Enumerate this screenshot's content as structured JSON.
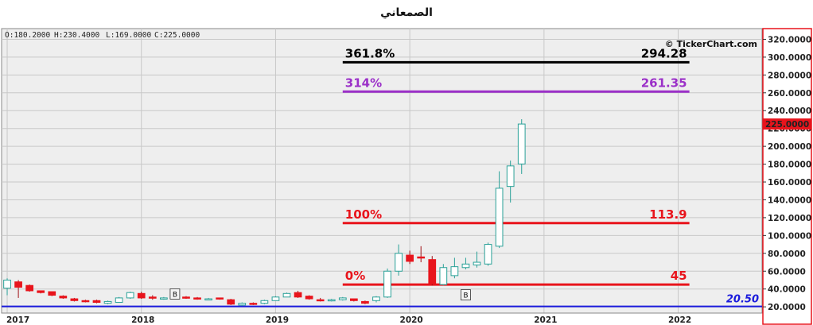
{
  "title": "الصمعاني",
  "ohlc": {
    "open": "O:180.2000",
    "high": "H:230.4000",
    "low": "L:169.0000",
    "close": "C:225.0000"
  },
  "copyright": "© TickerChart.com",
  "colors": {
    "up": "#2aa198",
    "down": "#e8141c",
    "grid": "#c8c8c8",
    "fib_black": "#000000",
    "fib_purple": "#9b30c8",
    "fib_red": "#e8141c",
    "support": "#1a1adc",
    "axis_border": "#e8141c"
  },
  "chart_data": {
    "type": "candlestick",
    "title": "الصمعاني",
    "ylim": [
      13,
      332
    ],
    "y_ticks": [
      20,
      40,
      60,
      80,
      100,
      120,
      140,
      160,
      180,
      200,
      220,
      240,
      260,
      280,
      300,
      320
    ],
    "y_tick_labels": [
      "20.0000",
      "40.0000",
      "60.0000",
      "80.0000",
      "100.0000",
      "120.0000",
      "140.0000",
      "160.0000",
      "180.0000",
      "200.0000",
      "220.0000",
      "240.0000",
      "260.0000",
      "280.0000",
      "300.0000",
      "320.0000"
    ],
    "x_ticks": [
      {
        "label": "2017",
        "index": 0
      },
      {
        "label": "2018",
        "index": 12
      },
      {
        "label": "2019",
        "index": 24
      },
      {
        "label": "2020",
        "index": 36
      },
      {
        "label": "2021",
        "index": 48
      },
      {
        "label": "2022",
        "index": 60
      }
    ],
    "x_range": [
      -0.5,
      67.5
    ],
    "last_price": {
      "value": 225.0,
      "label": "225.0000"
    },
    "support": {
      "value": 20.5,
      "label": "20.50"
    },
    "fib_levels": [
      {
        "pct": "361.8%",
        "value": 294.28,
        "value_label": "294.28",
        "color": "#000000"
      },
      {
        "pct": "314%",
        "value": 261.35,
        "value_label": "261.35",
        "color": "#9b30c8"
      },
      {
        "pct": "100%",
        "value": 113.9,
        "value_label": "113.9",
        "color": "#e8141c"
      },
      {
        "pct": "0%",
        "value": 45,
        "value_label": "45",
        "color": "#e8141c"
      }
    ],
    "fib_x_range": [
      30,
      61
    ],
    "markers": [
      {
        "label": "B",
        "index": 15,
        "value": 34
      },
      {
        "label": "B",
        "index": 41,
        "value": 33
      }
    ],
    "candles": [
      {
        "o": 41,
        "h": 52,
        "l": 33,
        "c": 50
      },
      {
        "o": 48,
        "h": 50,
        "l": 30,
        "c": 42
      },
      {
        "o": 44,
        "h": 45,
        "l": 37,
        "c": 38
      },
      {
        "o": 38,
        "h": 38,
        "l": 35,
        "c": 36
      },
      {
        "o": 37,
        "h": 37,
        "l": 32,
        "c": 33
      },
      {
        "o": 32,
        "h": 33,
        "l": 29,
        "c": 30
      },
      {
        "o": 29,
        "h": 30,
        "l": 26,
        "c": 27
      },
      {
        "o": 27,
        "h": 28,
        "l": 25,
        "c": 26
      },
      {
        "o": 27,
        "h": 28,
        "l": 24,
        "c": 25
      },
      {
        "o": 24,
        "h": 27,
        "l": 23,
        "c": 26
      },
      {
        "o": 25,
        "h": 31,
        "l": 25,
        "c": 30
      },
      {
        "o": 30,
        "h": 37,
        "l": 29,
        "c": 36
      },
      {
        "o": 35,
        "h": 37,
        "l": 29,
        "c": 30
      },
      {
        "o": 31,
        "h": 33,
        "l": 28,
        "c": 30
      },
      {
        "o": 29,
        "h": 31,
        "l": 28,
        "c": 30
      },
      {
        "o": 30,
        "h": 32,
        "l": 29,
        "c": 31
      },
      {
        "o": 31,
        "h": 32,
        "l": 29,
        "c": 30
      },
      {
        "o": 30,
        "h": 31,
        "l": 28,
        "c": 29
      },
      {
        "o": 29,
        "h": 30,
        "l": 28,
        "c": 29
      },
      {
        "o": 30,
        "h": 30,
        "l": 28,
        "c": 29
      },
      {
        "o": 28,
        "h": 29,
        "l": 22,
        "c": 23
      },
      {
        "o": 22,
        "h": 25,
        "l": 21,
        "c": 24
      },
      {
        "o": 24,
        "h": 25,
        "l": 22,
        "c": 23
      },
      {
        "o": 24,
        "h": 28,
        "l": 23,
        "c": 27
      },
      {
        "o": 27,
        "h": 32,
        "l": 27,
        "c": 31
      },
      {
        "o": 31,
        "h": 36,
        "l": 31,
        "c": 35
      },
      {
        "o": 36,
        "h": 38,
        "l": 30,
        "c": 31
      },
      {
        "o": 32,
        "h": 33,
        "l": 28,
        "c": 29
      },
      {
        "o": 28,
        "h": 30,
        "l": 26,
        "c": 27
      },
      {
        "o": 27,
        "h": 29,
        "l": 26,
        "c": 28
      },
      {
        "o": 28,
        "h": 31,
        "l": 27,
        "c": 30
      },
      {
        "o": 29,
        "h": 29,
        "l": 26,
        "c": 27
      },
      {
        "o": 26,
        "h": 27,
        "l": 23,
        "c": 24
      },
      {
        "o": 27,
        "h": 32,
        "l": 25,
        "c": 31
      },
      {
        "o": 31,
        "h": 63,
        "l": 30,
        "c": 60
      },
      {
        "o": 60,
        "h": 90,
        "l": 55,
        "c": 80
      },
      {
        "o": 78,
        "h": 83,
        "l": 68,
        "c": 71
      },
      {
        "o": 76,
        "h": 88,
        "l": 70,
        "c": 75
      },
      {
        "o": 73,
        "h": 77,
        "l": 44,
        "c": 46
      },
      {
        "o": 45,
        "h": 68,
        "l": 44,
        "c": 64
      },
      {
        "o": 55,
        "h": 75,
        "l": 52,
        "c": 65
      },
      {
        "o": 64,
        "h": 75,
        "l": 62,
        "c": 68
      },
      {
        "o": 67,
        "h": 82,
        "l": 64,
        "c": 70
      },
      {
        "o": 68,
        "h": 92,
        "l": 66,
        "c": 90
      },
      {
        "o": 88,
        "h": 172,
        "l": 86,
        "c": 153
      },
      {
        "o": 155,
        "h": 184,
        "l": 137,
        "c": 178
      },
      {
        "o": 180.2,
        "h": 230.4,
        "l": 169,
        "c": 225
      }
    ]
  }
}
